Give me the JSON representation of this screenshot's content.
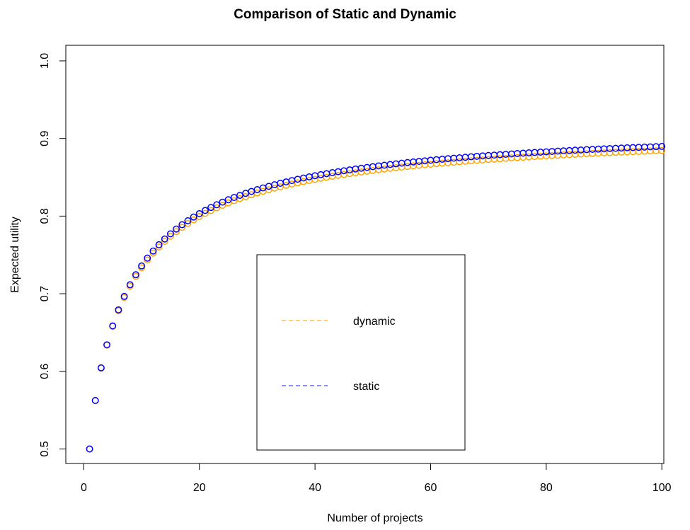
{
  "chart_data": {
    "type": "scatter",
    "title": "Comparison of Static and Dynamic",
    "xlabel": "Number of projects",
    "ylabel": "Expected utility",
    "xlim": [
      0,
      100
    ],
    "ylim": [
      0.5,
      1.0
    ],
    "x_ticks": [
      0,
      20,
      40,
      60,
      80,
      100
    ],
    "y_ticks": [
      0.5,
      0.6,
      0.7,
      0.8,
      0.9,
      1.0
    ],
    "x_tick_labels": [
      "0",
      "20",
      "40",
      "60",
      "80",
      "100"
    ],
    "y_tick_labels": [
      "0.5",
      "0.6",
      "0.7",
      "0.8",
      "0.9",
      "1.0"
    ],
    "grid": false,
    "legend": {
      "placement": "center-bottom",
      "entries": [
        {
          "label": "dynamic",
          "color": "#FFC04D",
          "line_style": "dashed"
        },
        {
          "label": "static",
          "color": "#6666FF",
          "line_style": "dashed"
        }
      ]
    },
    "series": [
      {
        "name": "dynamic",
        "color": "#FFA500",
        "marker": "open-circle",
        "x": [
          1,
          2,
          3,
          4,
          5,
          6,
          7,
          8,
          9,
          10,
          11,
          12,
          13,
          14,
          15,
          16,
          17,
          18,
          19,
          20,
          21,
          22,
          23,
          24,
          25,
          26,
          27,
          28,
          29,
          30,
          31,
          32,
          33,
          34,
          35,
          36,
          37,
          38,
          39,
          40,
          41,
          42,
          43,
          44,
          45,
          46,
          47,
          48,
          49,
          50,
          51,
          52,
          53,
          54,
          55,
          56,
          57,
          58,
          59,
          60,
          61,
          62,
          63,
          64,
          65,
          66,
          67,
          68,
          69,
          70,
          71,
          72,
          73,
          74,
          75,
          76,
          77,
          78,
          79,
          80,
          81,
          82,
          83,
          84,
          85,
          86,
          87,
          88,
          89,
          90,
          91,
          92,
          93,
          94,
          95,
          96,
          97,
          98,
          99,
          100
        ],
        "y": [
          0.5,
          0.5625,
          0.6042,
          0.6338,
          0.6579,
          0.6781,
          0.6951,
          0.7098,
          0.7224,
          0.7335,
          0.7434,
          0.7523,
          0.7602,
          0.7674,
          0.774,
          0.78,
          0.7855,
          0.7905,
          0.7952,
          0.7995,
          0.8035,
          0.8072,
          0.8107,
          0.814,
          0.817,
          0.8199,
          0.8226,
          0.8251,
          0.8275,
          0.8298,
          0.832,
          0.834,
          0.836,
          0.8378,
          0.8396,
          0.8413,
          0.8429,
          0.8445,
          0.8459,
          0.8473,
          0.8487,
          0.85,
          0.8513,
          0.8525,
          0.8536,
          0.8547,
          0.8558,
          0.8568,
          0.8578,
          0.8588,
          0.8597,
          0.8606,
          0.8615,
          0.8623,
          0.8631,
          0.8639,
          0.8647,
          0.8654,
          0.8661,
          0.8668,
          0.8675,
          0.8682,
          0.8688,
          0.8694,
          0.87,
          0.8706,
          0.8712,
          0.8718,
          0.8723,
          0.8729,
          0.8734,
          0.8739,
          0.8744,
          0.8749,
          0.8754,
          0.8758,
          0.8763,
          0.8767,
          0.8772,
          0.8776,
          0.878,
          0.8784,
          0.8788,
          0.8792,
          0.8796,
          0.88,
          0.8803,
          0.8807,
          0.881,
          0.8814,
          0.8817,
          0.8821,
          0.8824,
          0.8827,
          0.883,
          0.8833,
          0.8836,
          0.8839,
          0.8842,
          0.8845
        ]
      },
      {
        "name": "static",
        "color": "#0000FF",
        "marker": "open-circle",
        "x": [
          1,
          2,
          3,
          4,
          5,
          6,
          7,
          8,
          9,
          10,
          11,
          12,
          13,
          14,
          15,
          16,
          17,
          18,
          19,
          20,
          21,
          22,
          23,
          24,
          25,
          26,
          27,
          28,
          29,
          30,
          31,
          32,
          33,
          34,
          35,
          36,
          37,
          38,
          39,
          40,
          41,
          42,
          43,
          44,
          45,
          46,
          47,
          48,
          49,
          50,
          51,
          52,
          53,
          54,
          55,
          56,
          57,
          58,
          59,
          60,
          61,
          62,
          63,
          64,
          65,
          66,
          67,
          68,
          69,
          70,
          71,
          72,
          73,
          74,
          75,
          76,
          77,
          78,
          79,
          80,
          81,
          82,
          83,
          84,
          85,
          86,
          87,
          88,
          89,
          90,
          91,
          92,
          93,
          94,
          95,
          96,
          97,
          98,
          99,
          100
        ],
        "y": [
          0.5,
          0.5625,
          0.6045,
          0.6342,
          0.6586,
          0.6792,
          0.6966,
          0.7116,
          0.7245,
          0.7358,
          0.7459,
          0.755,
          0.7631,
          0.7705,
          0.7772,
          0.7833,
          0.7889,
          0.794,
          0.7988,
          0.8032,
          0.8073,
          0.8111,
          0.8146,
          0.818,
          0.8211,
          0.824,
          0.8267,
          0.8293,
          0.8318,
          0.8341,
          0.8363,
          0.8384,
          0.8404,
          0.8423,
          0.8441,
          0.8458,
          0.8475,
          0.8491,
          0.8506,
          0.852,
          0.8534,
          0.8547,
          0.856,
          0.8572,
          0.8584,
          0.8596,
          0.8607,
          0.8617,
          0.8627,
          0.8637,
          0.8647,
          0.8656,
          0.8665,
          0.8673,
          0.8682,
          0.869,
          0.8698,
          0.8705,
          0.8712,
          0.872,
          0.8727,
          0.8733,
          0.874,
          0.8746,
          0.8752,
          0.8758,
          0.8764,
          0.877,
          0.8776,
          0.8781,
          0.8786,
          0.8791,
          0.8796,
          0.8801,
          0.8806,
          0.8811,
          0.8815,
          0.882,
          0.8824,
          0.8828,
          0.8833,
          0.8837,
          0.8841,
          0.8845,
          0.8849,
          0.8852,
          0.8856,
          0.886,
          0.8863,
          0.8867,
          0.887,
          0.8873,
          0.8877,
          0.888,
          0.8883,
          0.8886,
          0.8889,
          0.8892,
          0.8895,
          0.8898
        ]
      }
    ]
  }
}
